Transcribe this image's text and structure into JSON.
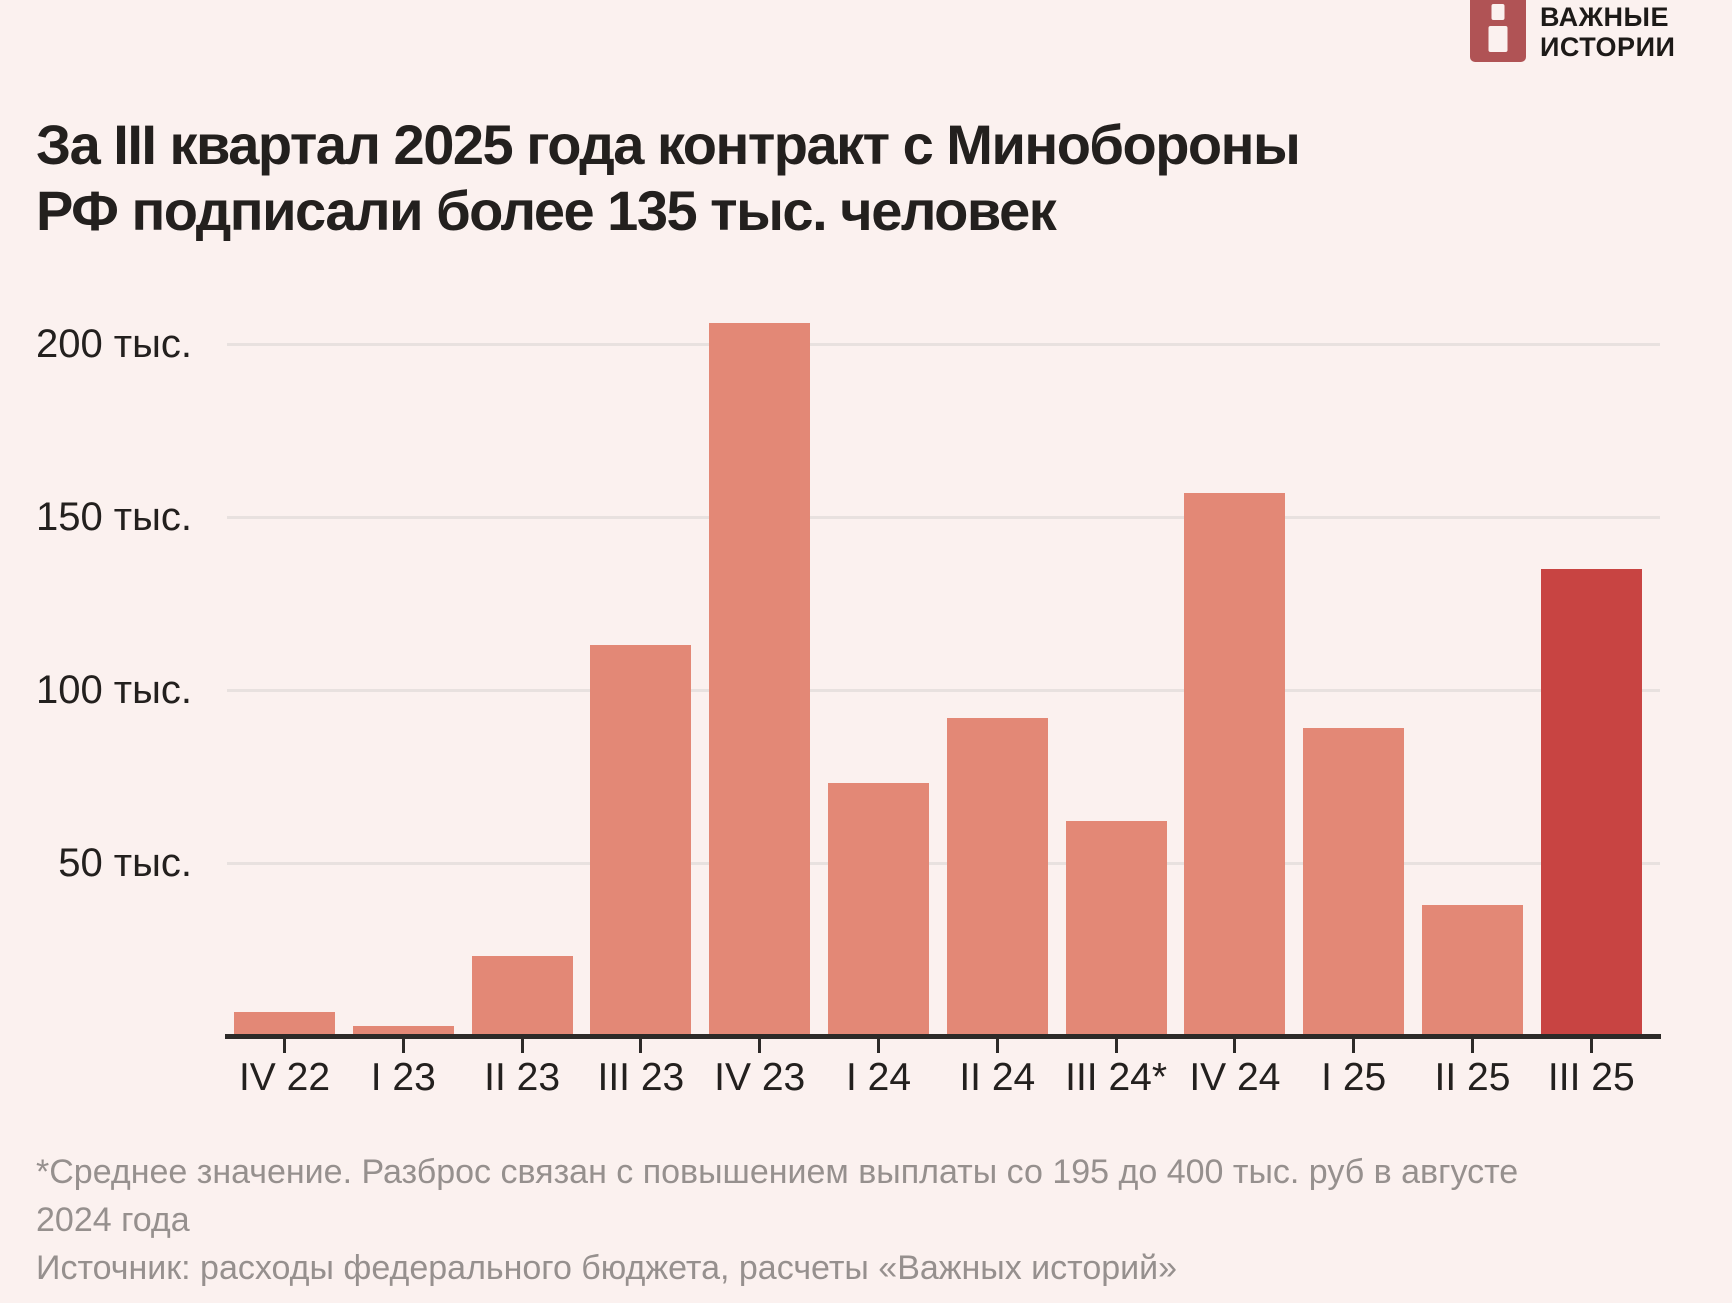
{
  "brand": {
    "name_line1": "ВАЖНЫЕ",
    "name_line2": "ИСТОРИИ",
    "logo_color": "#b05355"
  },
  "title": {
    "line1": "За III квартал 2025 года контракт с Минобороны",
    "line2": "РФ подписали более 135 тыс. человек"
  },
  "chart_data": {
    "type": "bar",
    "title": "За III квартал 2025 года контракт с Минобороны РФ подписали более 135 тыс. человек",
    "categories": [
      "IV 22",
      "I 23",
      "II 23",
      "III 23",
      "IV 23",
      "I 24",
      "II 24",
      "III 24*",
      "IV 24",
      "I 25",
      "II 25",
      "III 25"
    ],
    "values": [
      7,
      3,
      23,
      113,
      206,
      73,
      92,
      62,
      157,
      89,
      38,
      135
    ],
    "unit": "тыс. человек",
    "xlabel": "",
    "ylabel": "",
    "ylim": [
      0,
      210
    ],
    "yticks": [
      50,
      100,
      150,
      200
    ],
    "ytick_labels": [
      "50 тыс.",
      "100 тыс.",
      "150 тыс.",
      "200 тыс."
    ],
    "grid": true,
    "legend": false,
    "bar_color": "#e38876",
    "highlight_index": 11,
    "highlight_color": "#c84442"
  },
  "footnote": {
    "note": "*Среднее значение. Разброс связан с повышением выплаты со 195 до 400 тыс. руб в августе 2024 года",
    "source": "Источник: расходы федерального бюджета, расчеты «Важных историй»"
  }
}
